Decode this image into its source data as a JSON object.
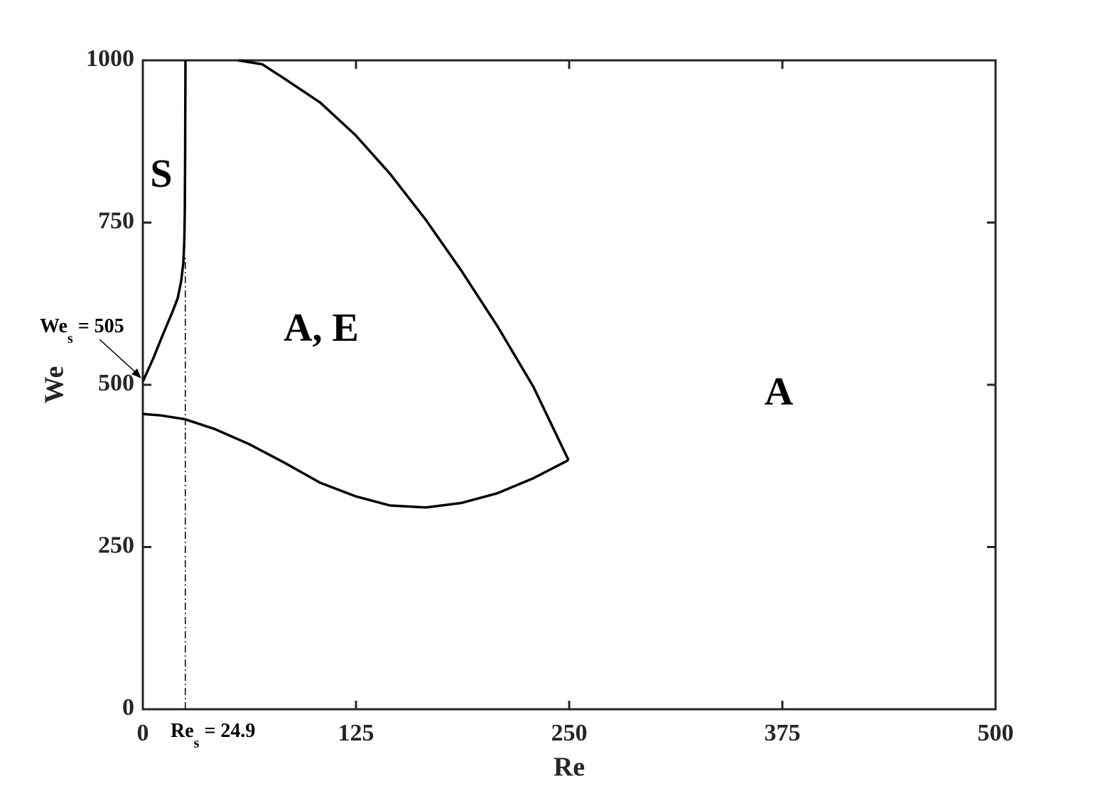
{
  "chart_data": {
    "type": "line",
    "x_label": "Re",
    "y_label": "We",
    "xlim": [
      0,
      500
    ],
    "ylim": [
      0,
      1000
    ],
    "xticks": [
      0,
      125,
      250,
      375,
      500
    ],
    "yticks": [
      0,
      250,
      500,
      750,
      1000
    ],
    "grid": false,
    "series": [
      {
        "color": "#000000",
        "x": [
          0,
          6,
          12,
          17,
          20.4,
          22.5,
          23.75,
          24.3,
          24.6,
          24.8,
          25
        ],
        "values": [
          505,
          540,
          579,
          610,
          633,
          660,
          688,
          720,
          765,
          850,
          1000
        ]
      },
      {
        "color": "#000000",
        "x": [
          55.8,
          70,
          82.9,
          104,
          124.6,
          145,
          166,
          187,
          208,
          229,
          249.6
        ],
        "values": [
          1000,
          994,
          972,
          935,
          885,
          825,
          754,
          675,
          590,
          497,
          384
        ]
      },
      {
        "color": "#000000",
        "x": [
          0,
          10,
          24.6,
          42,
          62,
          83,
          104,
          125,
          145,
          166,
          187,
          208,
          229,
          249.6
        ],
        "values": [
          455,
          453,
          447,
          432,
          409,
          380,
          349,
          328,
          314,
          311,
          318,
          333,
          356,
          384
        ]
      }
    ],
    "reference_lines": [
      {
        "x": 24.9,
        "y_range": [
          0,
          700
        ],
        "style": "dashdot"
      }
    ],
    "regions": [
      "S",
      "A, E",
      "A"
    ],
    "annotations": [
      {
        "base": "We",
        "sub": "s",
        "text": " = 505"
      },
      {
        "base": "Re",
        "sub": "s",
        "text": " = 24.9"
      }
    ]
  }
}
